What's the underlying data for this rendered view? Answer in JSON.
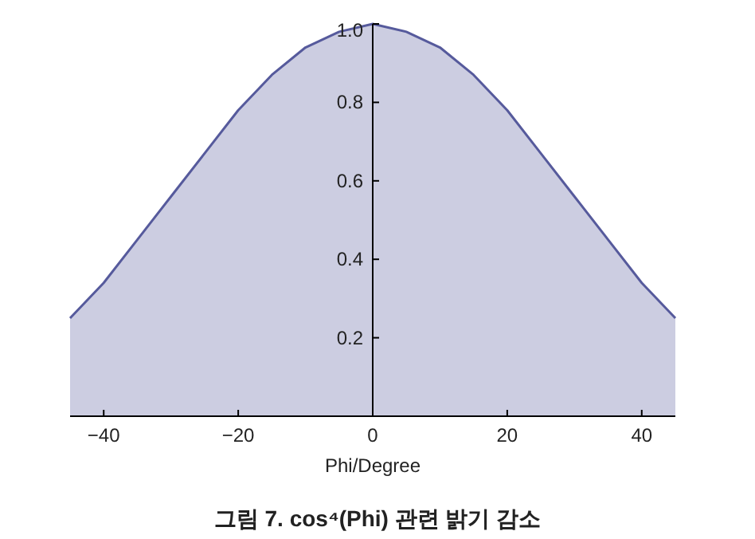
{
  "chart_data": {
    "type": "area",
    "x": [
      -45,
      -40,
      -35,
      -30,
      -25,
      -20,
      -15,
      -10,
      -5,
      0,
      5,
      10,
      15,
      20,
      25,
      30,
      35,
      40,
      45
    ],
    "series": [
      {
        "color": "#565a9c",
        "values": [
          0.25,
          0.34,
          0.45,
          0.56,
          0.67,
          0.78,
          0.87,
          0.94,
          0.98,
          1.0,
          0.98,
          0.94,
          0.87,
          0.78,
          0.67,
          0.56,
          0.45,
          0.34,
          0.25
        ]
      }
    ],
    "xlim": [
      -45,
      45
    ],
    "ylim": [
      0,
      1.0
    ],
    "xticks": [
      -40,
      -20,
      0,
      20,
      40
    ],
    "yticks": [
      {
        "value": 0.2,
        "label": "0.2"
      },
      {
        "value": 0.4,
        "label": "0.4"
      },
      {
        "value": 0.6,
        "label": "0.6"
      },
      {
        "value": 0.8,
        "label": "0.8"
      },
      {
        "value": 1.0,
        "label": "1.0"
      }
    ],
    "xlabel": "Phi/Degree",
    "annotations": [
      "그림 7. cos⁴(Phi) 관련 밝기 감소"
    ],
    "grid": false
  }
}
